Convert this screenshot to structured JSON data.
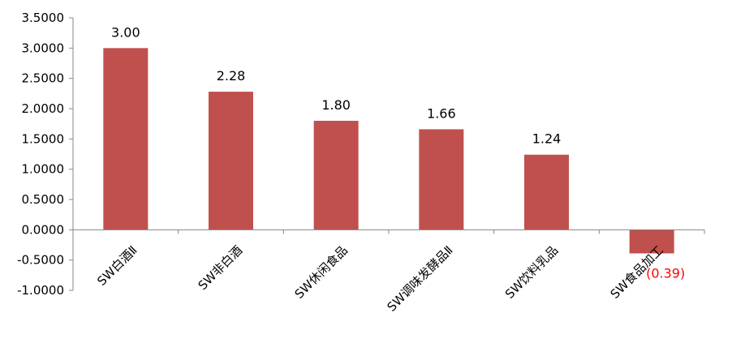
{
  "chart_data": {
    "type": "bar",
    "categories": [
      "SW白酒Ⅱ",
      "SW非白酒",
      "SW休闲食品",
      "SW调味发酵品Ⅱ",
      "SW饮料乳品",
      "SW食品加工"
    ],
    "values": [
      3.0,
      2.28,
      1.8,
      1.66,
      1.24,
      -0.39
    ],
    "data_labels": [
      "3.00",
      "2.28",
      "1.80",
      "1.66",
      "1.24",
      "(0.39)"
    ],
    "y_ticks": [
      "3.5000",
      "3.0000",
      "2.5000",
      "2.0000",
      "1.5000",
      "1.0000",
      "0.5000",
      "0.0000",
      "-0.5000",
      "-1.0000"
    ],
    "ylim": [
      -1.0,
      3.5
    ],
    "y_step": 0.5,
    "grid": false,
    "legend": "none",
    "bar_color": "#C0504D",
    "positive_label_color": "#000000",
    "negative_label_color": "#FF0000",
    "axis_color": "#868686"
  }
}
